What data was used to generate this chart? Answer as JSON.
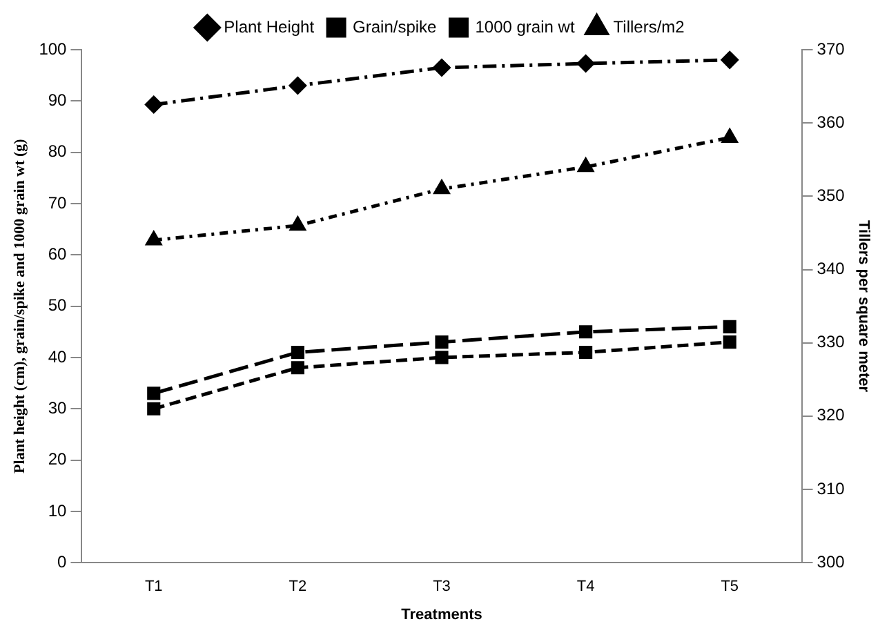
{
  "chart_data": {
    "type": "line",
    "xlabel": "Treatments",
    "ylabel": "Plant height (cm), grain/spike and 1000 grain wt (g)",
    "y2label": "Tillers per square meter",
    "categories": [
      "T1",
      "T2",
      "T3",
      "T4",
      "T5"
    ],
    "series": [
      {
        "name": "Plant Height",
        "color": "#000000",
        "marker": "diamond",
        "line_style": "dashed",
        "values": [
          89.3,
          93,
          96.5,
          97.3,
          98
        ]
      },
      {
        "name": "Grain/spike",
        "color": "#000000",
        "marker": "square",
        "line_style": "dashed",
        "values": [
          30,
          38,
          40,
          41,
          43
        ]
      },
      {
        "name": "1000 grain wt",
        "color": "#000000",
        "marker": "square",
        "line_style": "dashed",
        "values": [
          33,
          41,
          43,
          45,
          46
        ]
      },
      {
        "name": "Tillers/m2",
        "color": "#000000",
        "marker": "triangle",
        "line_style": "dashed",
        "axis": "y2",
        "values": [
          344,
          346,
          351,
          354,
          358
        ]
      }
    ],
    "ylim": [
      0,
      100
    ],
    "yticks": [
      0,
      10,
      20,
      30,
      40,
      50,
      60,
      70,
      80,
      90,
      100
    ],
    "y2lim": [
      300,
      370
    ],
    "y2ticks": [
      300,
      310,
      320,
      330,
      340,
      350,
      360,
      370
    ],
    "grid": false,
    "legend": "top"
  }
}
